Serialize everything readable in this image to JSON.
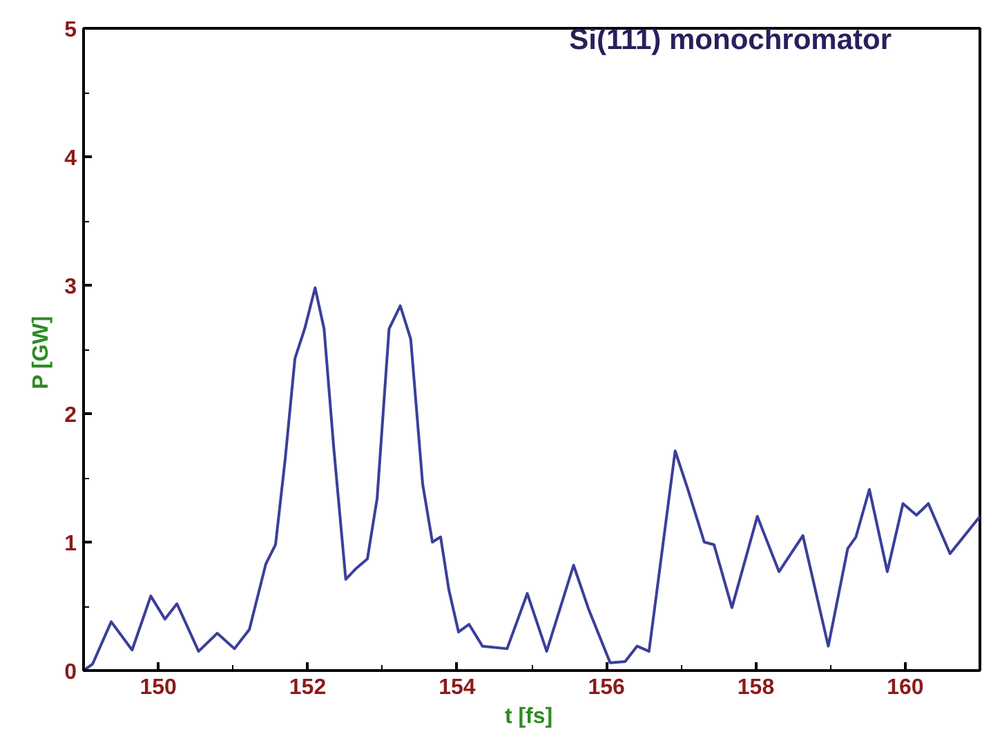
{
  "chart_data": {
    "type": "line",
    "xlabel": "t  [fs]",
    "ylabel": "P  [GW]",
    "annotations": [
      "Si(111) monochromator"
    ],
    "xlim": [
      149,
      161
    ],
    "ylim": [
      0,
      5
    ],
    "xticks": [
      150,
      152,
      154,
      156,
      158,
      160
    ],
    "yticks": [
      0,
      1,
      2,
      3,
      4,
      5
    ],
    "grid": false,
    "marker": "none",
    "line_style": "solid",
    "series": [
      {
        "color": "#3a3f9a",
        "x": [
          149.0,
          149.12,
          149.37,
          149.65,
          149.9,
          150.09,
          150.25,
          150.54,
          150.79,
          151.02,
          151.22,
          151.44,
          151.57,
          151.7,
          151.83,
          151.96,
          152.1,
          152.22,
          152.35,
          152.51,
          152.64,
          152.8,
          152.93,
          153.09,
          153.24,
          153.38,
          153.54,
          153.67,
          153.78,
          153.89,
          154.02,
          154.16,
          154.34,
          154.67,
          154.94,
          155.2,
          155.56,
          155.76,
          156.05,
          156.25,
          156.41,
          156.57,
          156.92,
          157.09,
          157.31,
          157.44,
          157.68,
          158.02,
          158.31,
          158.63,
          158.97,
          159.23,
          159.34,
          159.52,
          159.76,
          159.97,
          160.15,
          160.31,
          160.6,
          161.0
        ],
        "values": [
          0,
          0.05,
          0.38,
          0.16,
          0.58,
          0.4,
          0.52,
          0.15,
          0.29,
          0.17,
          0.32,
          0.83,
          0.98,
          1.65,
          2.43,
          2.66,
          2.98,
          2.66,
          1.73,
          0.71,
          0.79,
          0.87,
          1.34,
          2.66,
          2.84,
          2.58,
          1.45,
          1.0,
          1.04,
          0.63,
          0.3,
          0.36,
          0.19,
          0.17,
          0.6,
          0.15,
          0.82,
          0.48,
          0.06,
          0.07,
          0.19,
          0.15,
          1.71,
          1.41,
          1.0,
          0.98,
          0.49,
          1.2,
          0.77,
          1.05,
          0.19,
          0.95,
          1.04,
          1.41,
          0.77,
          1.3,
          1.21,
          1.3,
          0.91,
          1.2
        ]
      }
    ]
  }
}
